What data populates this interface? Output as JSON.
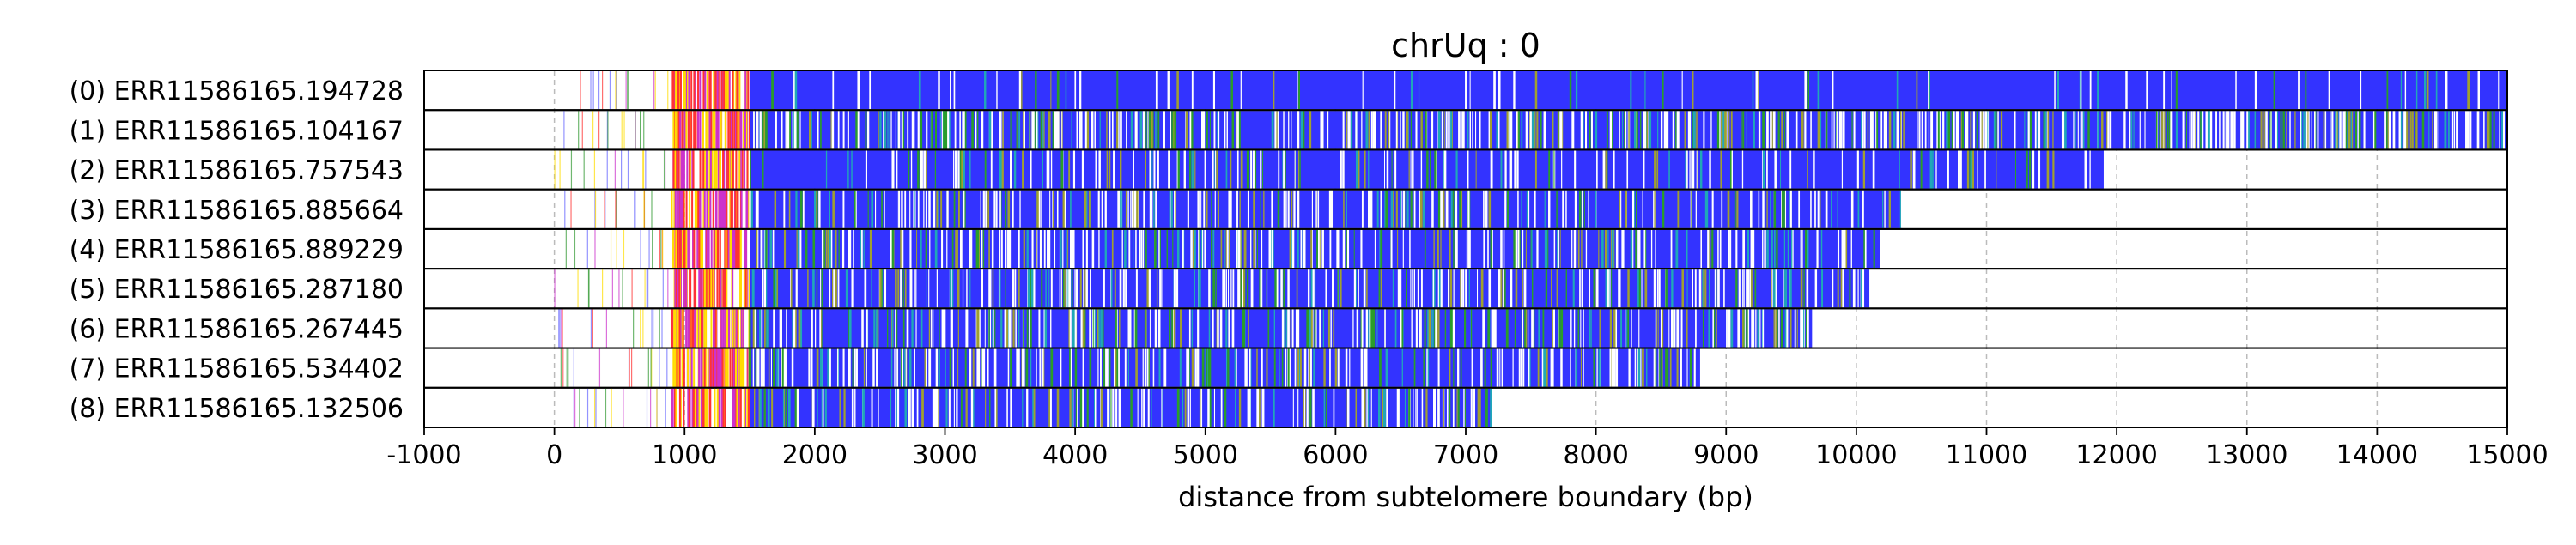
{
  "chart_data": {
    "type": "read-track",
    "title": "chrUq : 0",
    "xlabel": "distance from subtelomere boundary (bp)",
    "xlim": [
      -1000,
      15000
    ],
    "xticks": [
      -1000,
      0,
      1000,
      2000,
      3000,
      4000,
      5000,
      6000,
      7000,
      8000,
      9000,
      10000,
      11000,
      12000,
      13000,
      14000,
      15000
    ],
    "xtick_labels": [
      "-1000",
      "0",
      "1000",
      "2000",
      "3000",
      "4000",
      "5000",
      "6000",
      "7000",
      "8000",
      "9000",
      "10000",
      "11000",
      "12000",
      "13000",
      "14000",
      "15000"
    ],
    "grid": "vertical dashed",
    "colors": {
      "telomere": "#3333ff",
      "stripe_white": "#ffffff",
      "stripe_green": "#2a9d2a",
      "stripe_teal": "#20a8b8",
      "stripe_olive": "#a0a030",
      "subtel_red": "#ff3333",
      "subtel_magenta": "#cc33cc",
      "subtel_yellow": "#ffdd00",
      "subtel_blue": "#6666ff",
      "subtel_green": "#339933",
      "grid": "#bbbbbb"
    },
    "reads": [
      {
        "label": "(0) ERR11586165.194728",
        "end": 15000,
        "density": 0.12
      },
      {
        "label": "(1) ERR11586165.104167",
        "end": 15000,
        "density": 0.85
      },
      {
        "label": "(2) ERR11586165.757543",
        "end": 11900,
        "density": 0.35
      },
      {
        "label": "(3) ERR11586165.885664",
        "end": 10350,
        "density": 0.55
      },
      {
        "label": "(4) ERR11586165.889229",
        "end": 10180,
        "density": 0.6
      },
      {
        "label": "(5) ERR11586165.287180",
        "end": 10100,
        "density": 0.6
      },
      {
        "label": "(6) ERR11586165.267445",
        "end": 9660,
        "density": 0.7
      },
      {
        "label": "(7) ERR11586165.534402",
        "end": 8800,
        "density": 0.65
      },
      {
        "label": "(8) ERR11586165.132506",
        "end": 7200,
        "density": 0.6
      }
    ]
  }
}
